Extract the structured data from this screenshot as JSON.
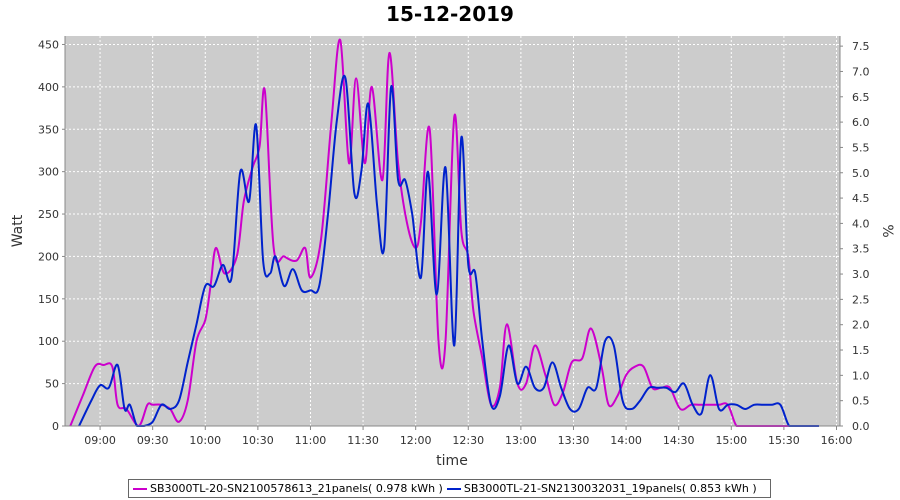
{
  "chart_data": {
    "type": "line",
    "title": "15-12-2019",
    "xlabel": "time",
    "ylabel": "Watt",
    "y2label": "%",
    "ylim": [
      0,
      460
    ],
    "y2lim": [
      0,
      7.7
    ],
    "xlim": [
      "08:40",
      "16:02"
    ],
    "grid": true,
    "background": "#cccccc",
    "x_ticks": [
      "09:00",
      "09:30",
      "10:00",
      "10:30",
      "11:00",
      "11:30",
      "12:00",
      "12:30",
      "13:00",
      "13:30",
      "14:00",
      "14:30",
      "15:00",
      "15:30",
      "16:00"
    ],
    "y_ticks": [
      0,
      50,
      100,
      150,
      200,
      250,
      300,
      350,
      400,
      450
    ],
    "y2_ticks": [
      "0.0",
      "0.5",
      "1.0",
      "1.5",
      "2.0",
      "2.5",
      "3.0",
      "3.5",
      "4.0",
      "4.5",
      "5.0",
      "5.5",
      "6.0",
      "6.5",
      "7.0",
      "7.5"
    ],
    "legend_position": "bottom",
    "series": [
      {
        "name": "SB3000TL-20-SN2100578613_21panels( 0.978 kWh )",
        "color": "#cc00cc",
        "x": [
          "08:43",
          "08:50",
          "08:57",
          "09:02",
          "09:07",
          "09:10",
          "09:15",
          "09:22",
          "09:27",
          "09:30",
          "09:35",
          "09:40",
          "09:45",
          "09:50",
          "09:55",
          "10:00",
          "10:03",
          "10:06",
          "10:11",
          "10:18",
          "10:22",
          "10:27",
          "10:31",
          "10:34",
          "10:39",
          "10:45",
          "10:52",
          "10:57",
          "11:00",
          "11:06",
          "11:12",
          "11:17",
          "11:22",
          "11:26",
          "11:31",
          "11:35",
          "11:41",
          "11:45",
          "11:50",
          "11:55",
          "12:00",
          "12:03",
          "12:08",
          "12:13",
          "12:17",
          "12:22",
          "12:26",
          "12:30",
          "12:33",
          "12:38",
          "12:43",
          "12:48",
          "12:52",
          "12:58",
          "13:03",
          "13:08",
          "13:14",
          "13:19",
          "13:24",
          "13:29",
          "13:35",
          "13:40",
          "13:46",
          "13:50",
          "13:55",
          "14:00",
          "14:05",
          "14:10",
          "14:15",
          "14:20",
          "14:25",
          "14:31",
          "14:37",
          "14:42",
          "14:48",
          "14:53",
          "14:58",
          "15:03",
          "15:08",
          "15:13",
          "15:18",
          "15:23",
          "15:28",
          "15:34",
          "15:39",
          "15:44",
          "15:49"
        ],
        "values": [
          0,
          35,
          70,
          72,
          70,
          25,
          20,
          0,
          25,
          25,
          25,
          20,
          5,
          30,
          100,
          125,
          165,
          210,
          180,
          200,
          265,
          305,
          330,
          395,
          210,
          200,
          195,
          210,
          175,
          220,
          360,
          455,
          310,
          410,
          310,
          400,
          290,
          440,
          310,
          240,
          210,
          240,
          350,
          100,
          100,
          365,
          230,
          200,
          135,
          80,
          25,
          45,
          120,
          50,
          50,
          95,
          60,
          25,
          40,
          75,
          80,
          115,
          70,
          25,
          35,
          60,
          70,
          70,
          45,
          45,
          45,
          20,
          25,
          25,
          25,
          25,
          25,
          0,
          0,
          0,
          0,
          0,
          0,
          0,
          0,
          0,
          0
        ]
      },
      {
        "name": "SB3000TL-21-SN2130032031_19panels( 0.853 kWh )",
        "color": "#0022cc",
        "x": [
          "08:48",
          "08:55",
          "09:00",
          "09:05",
          "09:10",
          "09:14",
          "09:17",
          "09:21",
          "09:25",
          "09:30",
          "09:35",
          "09:40",
          "09:45",
          "09:50",
          "09:55",
          "10:00",
          "10:05",
          "10:10",
          "10:15",
          "10:20",
          "10:25",
          "10:29",
          "10:33",
          "10:37",
          "10:40",
          "10:45",
          "10:50",
          "10:55",
          "11:00",
          "11:05",
          "11:10",
          "11:15",
          "11:20",
          "11:25",
          "11:29",
          "11:33",
          "11:38",
          "11:42",
          "11:46",
          "11:50",
          "11:54",
          "11:58",
          "12:03",
          "12:07",
          "12:12",
          "12:17",
          "12:22",
          "12:26",
          "12:30",
          "12:34",
          "12:38",
          "12:43",
          "12:48",
          "12:53",
          "12:58",
          "13:03",
          "13:08",
          "13:13",
          "13:18",
          "13:23",
          "13:28",
          "13:33",
          "13:38",
          "13:43",
          "13:48",
          "13:53",
          "13:58",
          "14:03",
          "14:08",
          "14:13",
          "14:18",
          "14:23",
          "14:28",
          "14:33",
          "14:38",
          "14:43",
          "14:48",
          "14:53",
          "14:58",
          "15:03",
          "15:08",
          "15:13",
          "15:18",
          "15:23",
          "15:28",
          "15:33",
          "15:38",
          "15:44",
          "15:50"
        ],
        "values": [
          0,
          30,
          48,
          45,
          72,
          20,
          25,
          0,
          0,
          5,
          25,
          20,
          30,
          75,
          120,
          165,
          165,
          190,
          175,
          300,
          265,
          355,
          195,
          180,
          200,
          165,
          185,
          160,
          160,
          165,
          250,
          360,
          410,
          275,
          300,
          380,
          260,
          210,
          400,
          290,
          290,
          250,
          175,
          300,
          155,
          305,
          95,
          340,
          190,
          180,
          100,
          25,
          35,
          95,
          50,
          70,
          45,
          45,
          75,
          45,
          20,
          20,
          45,
          45,
          100,
          95,
          30,
          20,
          30,
          45,
          45,
          45,
          40,
          50,
          25,
          15,
          60,
          20,
          25,
          25,
          20,
          25,
          25,
          25,
          25,
          0,
          0,
          0,
          0
        ]
      }
    ]
  }
}
